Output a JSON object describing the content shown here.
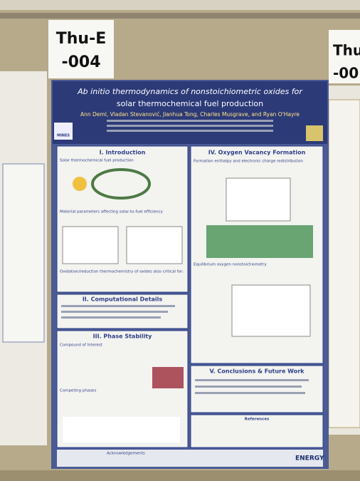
{
  "signs": {
    "left": [
      "Thu-E",
      "-004"
    ],
    "right": [
      "Thu",
      "-00"
    ]
  },
  "poster": {
    "title": [
      "Ab initio thermodynamics of nonstoichiometric oxides for",
      "solar thermochemical fuel production"
    ],
    "authors": "Ann Deml, Vladan Stevanović, Jianhua Tong, Charles Musgrave, and Ryan O'Hayre",
    "logos": {
      "left": "MINES",
      "bottom": "ENERGY"
    },
    "sections": {
      "intro": {
        "title": "I. Introduction",
        "subtitles": [
          "Solar thermochemical fuel production",
          "Material parameters affecting solar-to-fuel efficiency",
          "Oxidation/reduction thermochemistry of oxides also critical for:"
        ]
      },
      "computational": {
        "title": "II. Computational Details"
      },
      "phase": {
        "title": "III. Phase Stability",
        "subtitles": [
          "Compound of Interest",
          "Competing phases"
        ]
      },
      "vacancy": {
        "title": "IV. Oxygen Vacancy Formation",
        "subtitles": [
          "Formation enthalpy and electronic charge redistribution",
          "Equilibrium oxygen nonstoichiometry"
        ]
      },
      "conclusions": {
        "title": "V. Conclusions & Future Work"
      },
      "references": {
        "title": "References"
      },
      "acknowledgements": {
        "title": "Acknowledgements"
      }
    }
  }
}
